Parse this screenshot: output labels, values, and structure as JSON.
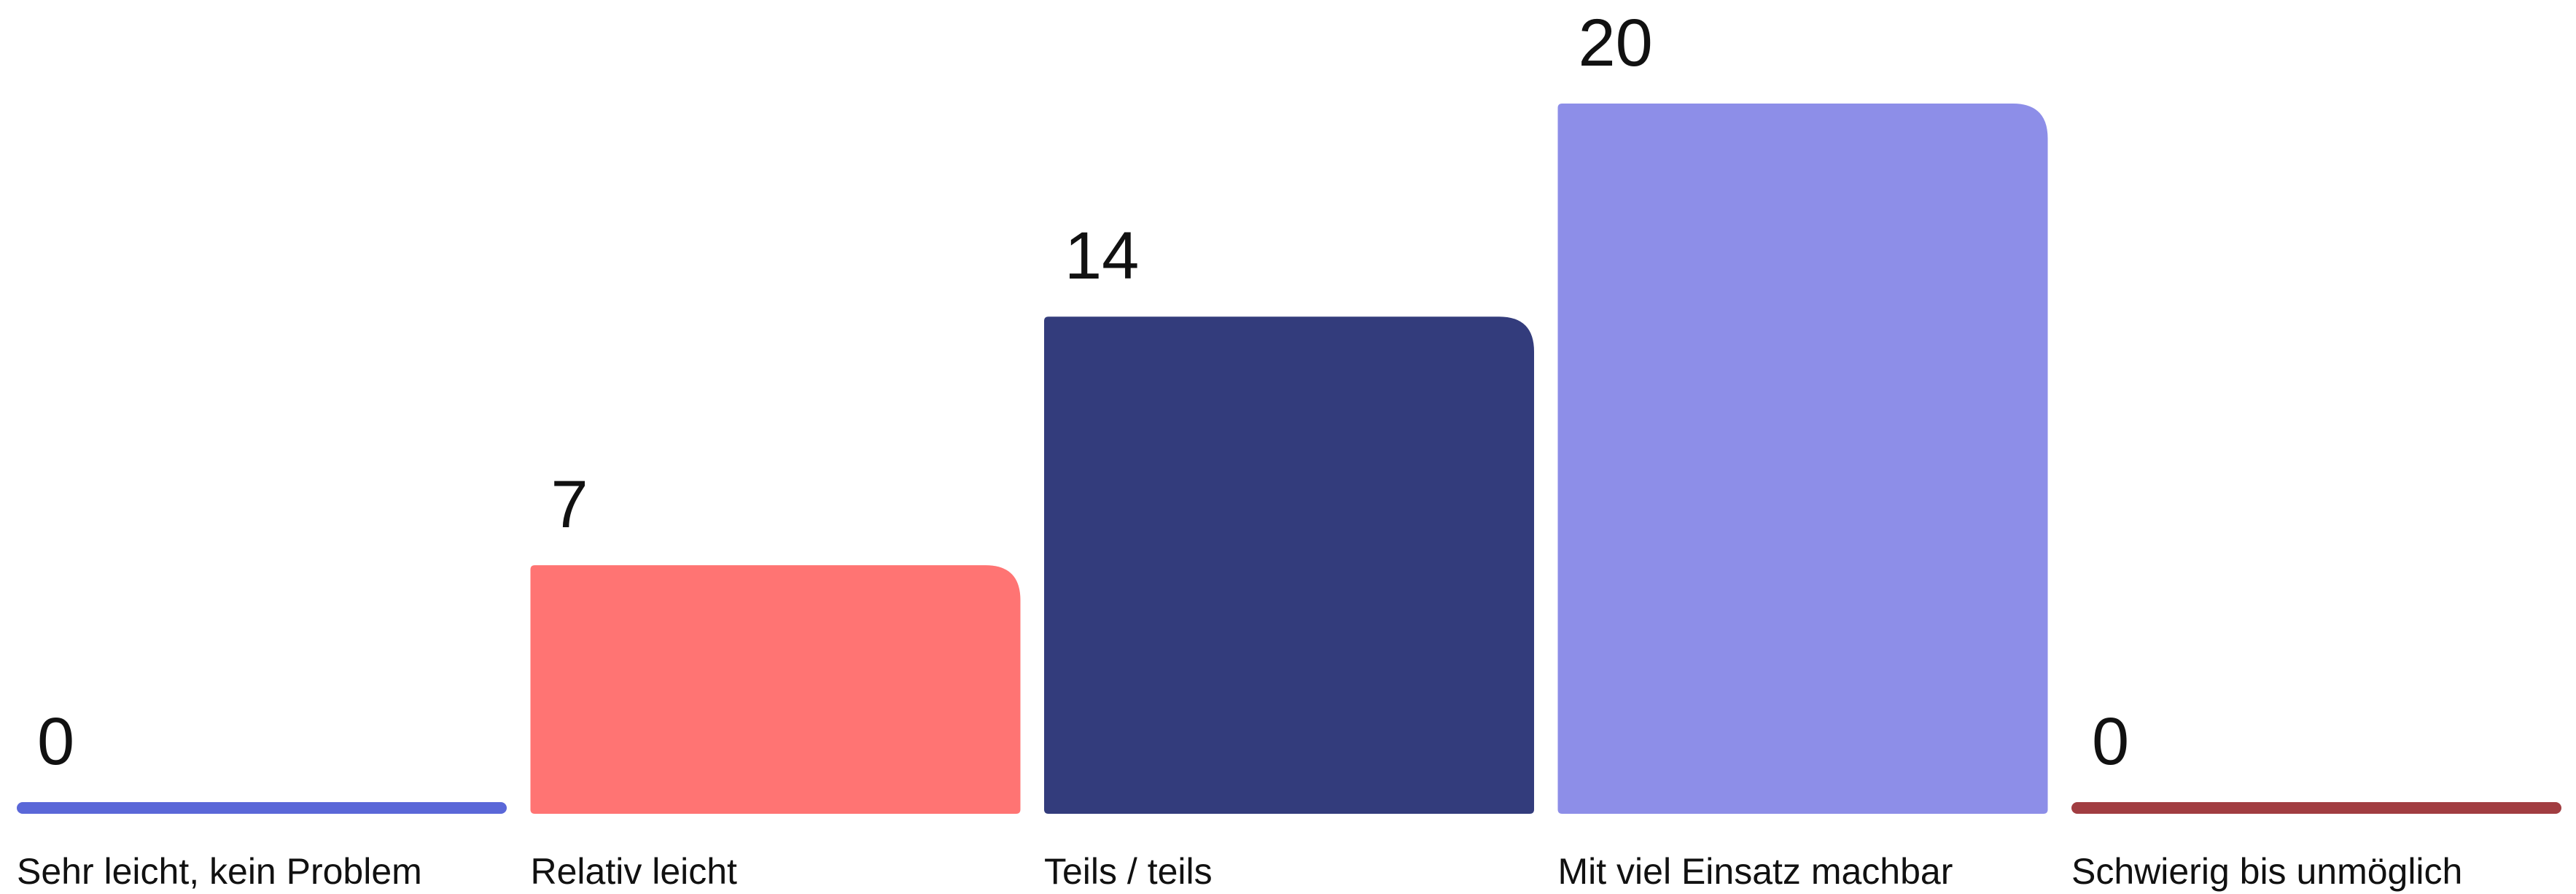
{
  "chart_data": {
    "type": "bar",
    "categories": [
      "Sehr leicht, kein Problem",
      "Relativ leicht",
      "Teils / teils",
      "Mit viel Einsatz machbar",
      "Schwierig bis unmöglich"
    ],
    "values": [
      0,
      7,
      14,
      20,
      0
    ],
    "colors": [
      "#5a67d8",
      "#ff7473",
      "#333c7c",
      "#8d8ee8",
      "#a13d41"
    ]
  }
}
